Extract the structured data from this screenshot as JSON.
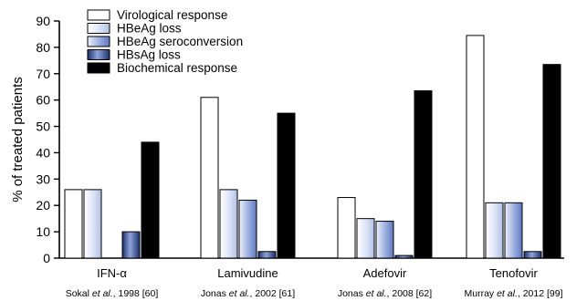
{
  "chart_data": {
    "type": "bar",
    "categories": [
      "IFN-α",
      "Lamivudine",
      "Adefovir",
      "Tenofovir"
    ],
    "citations": [
      {
        "author": "Sokal",
        "etal": "et al.",
        "rest": ", 1998 [60]"
      },
      {
        "author": "Jonas",
        "etal": "et al.",
        "rest": ", 2002 [61]"
      },
      {
        "author": "Jonas",
        "etal": "et al.",
        "rest": ", 2008 [62]"
      },
      {
        "author": "Murray",
        "etal": "et al.",
        "rest": ", 2012 [99]"
      }
    ],
    "ylabel": "% of treated patients",
    "ylim": [
      0,
      90
    ],
    "yticks": [
      0,
      10,
      20,
      30,
      40,
      50,
      60,
      70,
      80,
      90
    ],
    "legend_position": "top-left",
    "series": [
      {
        "name": "Virological response",
        "style": "white",
        "values": [
          26,
          61,
          23,
          84.5
        ]
      },
      {
        "name": "HBeAg loss",
        "style": "light-gradient",
        "values": [
          26,
          26,
          15,
          21
        ]
      },
      {
        "name": "HBeAg seroconversion",
        "style": "mid-gradient",
        "values": [
          null,
          22,
          14,
          21
        ]
      },
      {
        "name": "HBsAg loss",
        "style": "dark-gradient",
        "values": [
          10,
          2.5,
          1,
          2.5
        ]
      },
      {
        "name": "Biochemical response",
        "style": "black",
        "values": [
          44,
          55,
          63.5,
          73.5
        ]
      }
    ]
  }
}
